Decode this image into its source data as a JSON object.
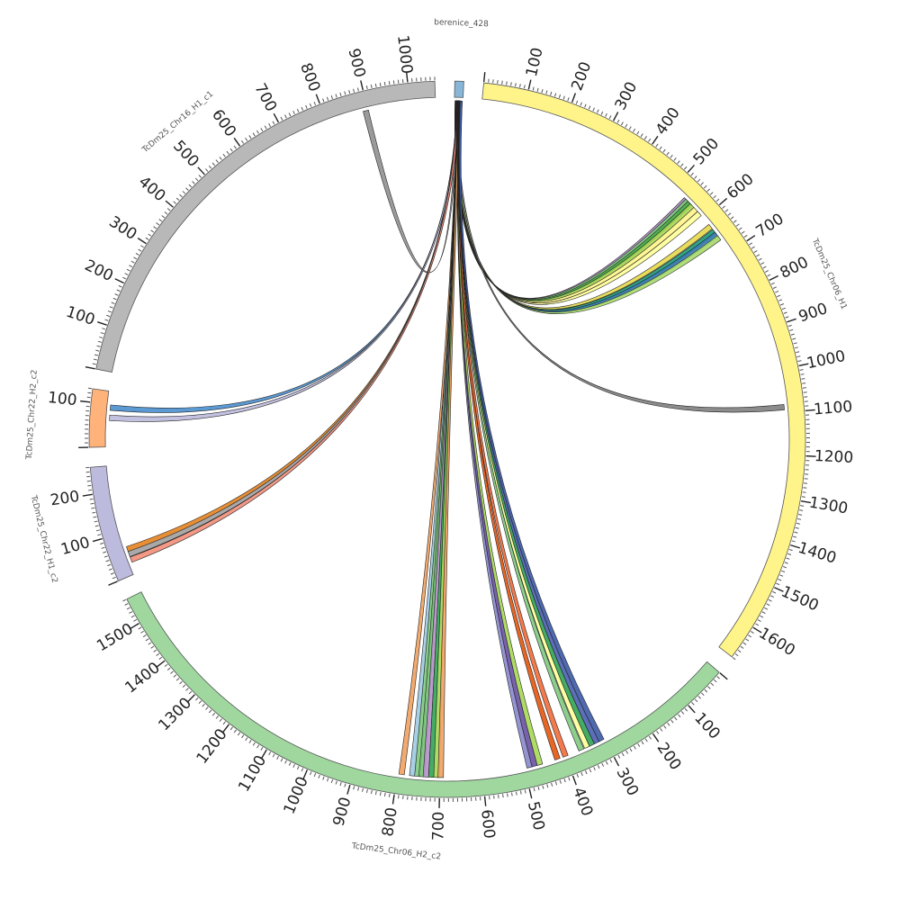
{
  "diagram": {
    "segments": [
      {
        "id": "berenice",
        "label": "berenice_428",
        "length": 20,
        "color": "#87b6d9",
        "ticks": []
      },
      {
        "id": "chr06_h1",
        "label": "TcDm25_Chr06_H1",
        "length": 1680,
        "color": "#fff48a",
        "ticks": [
          100,
          200,
          300,
          400,
          500,
          600,
          700,
          800,
          900,
          1000,
          1100,
          1200,
          1300,
          1400,
          1500,
          1600
        ]
      },
      {
        "id": "chr06_h2",
        "label": "TcDm25_Chr06_H2_c2",
        "length": 1560,
        "color": "#9fd79f",
        "ticks": [
          100,
          200,
          300,
          400,
          500,
          600,
          700,
          800,
          900,
          1000,
          1100,
          1200,
          1300,
          1400,
          1500
        ]
      },
      {
        "id": "chr22_h1",
        "label": "TcDm25_Chr22_H1_c2",
        "length": 260,
        "color": "#bcbadd",
        "ticks": [
          100,
          200
        ]
      },
      {
        "id": "chr22_h2",
        "label": "TcDm25_Chr22_H2_c2",
        "length": 130,
        "color": "#ffb27a",
        "ticks": [
          100
        ]
      },
      {
        "id": "chr16_h1",
        "label": "TcDm25_Chr16_H1_c1",
        "length": 1060,
        "color": "#b8b8b8",
        "ticks": [
          100,
          200,
          300,
          400,
          500,
          600,
          700,
          800,
          900,
          1000
        ]
      }
    ],
    "links": [
      {
        "to": "chr06_h1",
        "pos": 540,
        "color": "#b690c9"
      },
      {
        "to": "chr06_h1",
        "pos": 545,
        "color": "#7fc97f"
      },
      {
        "to": "chr06_h1",
        "pos": 552,
        "color": "#4daf4a"
      },
      {
        "to": "chr06_h1",
        "pos": 560,
        "color": "#a6d854"
      },
      {
        "to": "chr06_h1",
        "pos": 572,
        "color": "#fff48a"
      },
      {
        "to": "chr06_h1",
        "pos": 585,
        "color": "#ffff99"
      },
      {
        "to": "chr06_h1",
        "pos": 625,
        "color": "#e5d84a"
      },
      {
        "to": "chr06_h1",
        "pos": 640,
        "color": "#1b9e77"
      },
      {
        "to": "chr06_h1",
        "pos": 648,
        "color": "#377eb8"
      },
      {
        "to": "chr06_h1",
        "pos": 658,
        "color": "#a6d96a"
      },
      {
        "to": "chr06_h1",
        "pos": 1088,
        "color": "#808080"
      },
      {
        "to": "chr16_h1",
        "pos": 895,
        "color": "#909090"
      },
      {
        "to": "chr22_h2",
        "pos": 92,
        "color": "#4a8fcf"
      },
      {
        "to": "chr22_h2",
        "pos": 68,
        "color": "#bcbadd"
      },
      {
        "to": "chr22_h1",
        "pos": 60,
        "color": "#e6821e"
      },
      {
        "to": "chr22_h1",
        "pos": 48,
        "color": "#a0a0a0"
      },
      {
        "to": "chr22_h1",
        "pos": 34,
        "color": "#f28e79"
      },
      {
        "to": "chr06_h2",
        "pos": 790,
        "color": "#f2a15f"
      },
      {
        "to": "chr06_h2",
        "pos": 765,
        "color": "#9ecae1"
      },
      {
        "to": "chr06_h2",
        "pos": 753,
        "color": "#7fc97f"
      },
      {
        "to": "chr06_h2",
        "pos": 743,
        "color": "#74c476"
      },
      {
        "to": "chr06_h2",
        "pos": 733,
        "color": "#b690c9"
      },
      {
        "to": "chr06_h2",
        "pos": 720,
        "color": "#31a354"
      },
      {
        "to": "chr06_h2",
        "pos": 708,
        "color": "#a6d854"
      },
      {
        "to": "chr06_h2",
        "pos": 698,
        "color": "#f2a15f"
      },
      {
        "to": "chr06_h2",
        "pos": 488,
        "color": "#8888cc"
      },
      {
        "to": "chr06_h2",
        "pos": 476,
        "color": "#6a51a3"
      },
      {
        "to": "chr06_h2",
        "pos": 463,
        "color": "#a6d854"
      },
      {
        "to": "chr06_h2",
        "pos": 420,
        "color": "#e6550d"
      },
      {
        "to": "chr06_h2",
        "pos": 400,
        "color": "#f26b3a"
      },
      {
        "to": "chr06_h2",
        "pos": 360,
        "color": "#7fc97f"
      },
      {
        "to": "chr06_h2",
        "pos": 345,
        "color": "#ffff99"
      },
      {
        "to": "chr06_h2",
        "pos": 333,
        "color": "#31a354"
      },
      {
        "to": "chr06_h2",
        "pos": 320,
        "color": "#4a5fb0"
      },
      {
        "to": "chr06_h2",
        "pos": 308,
        "color": "#3c5aa6"
      }
    ]
  }
}
